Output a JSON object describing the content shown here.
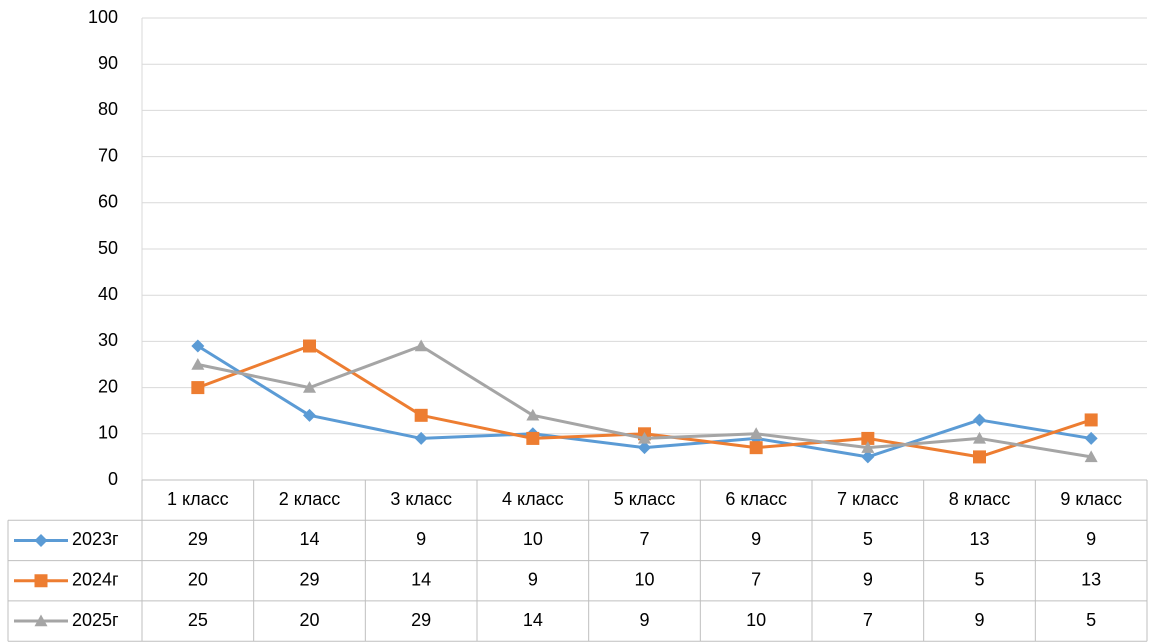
{
  "chart_data": {
    "type": "line",
    "categories": [
      "1 класс",
      "2 класс",
      "3 класс",
      "4 класс",
      "5 класс",
      "6 класс",
      "7 класс",
      "8 класс",
      "9 класс"
    ],
    "series": [
      {
        "name": "2023г",
        "color": "#5b9bd5",
        "marker": "diamond",
        "values": [
          29,
          14,
          9,
          10,
          7,
          9,
          5,
          13,
          9
        ]
      },
      {
        "name": "2024г",
        "color": "#ed7d31",
        "marker": "square",
        "values": [
          20,
          29,
          14,
          9,
          10,
          7,
          9,
          5,
          13
        ]
      },
      {
        "name": "2025г",
        "color": "#a5a5a5",
        "marker": "triangle",
        "values": [
          25,
          20,
          29,
          14,
          9,
          10,
          7,
          9,
          5
        ]
      }
    ],
    "ylim": [
      0,
      100
    ],
    "yticks": [
      0,
      10,
      20,
      30,
      40,
      50,
      60,
      70,
      80,
      90,
      100
    ],
    "grid": true,
    "data_table": true
  }
}
